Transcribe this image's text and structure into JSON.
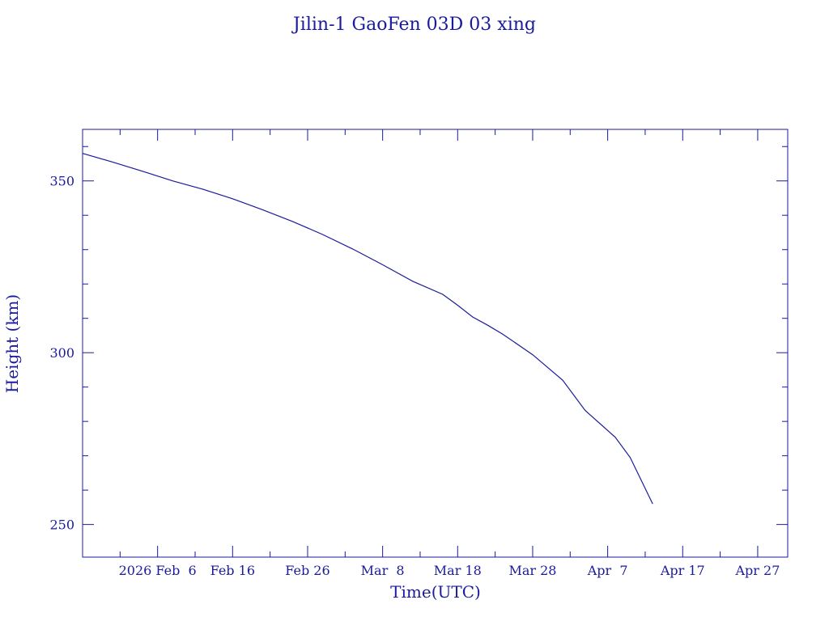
{
  "chart_data": {
    "type": "line",
    "title": "Jilin-1 GaoFen 03D 03 xing",
    "xlabel": "Time(UTC)",
    "ylabel": "Height (km)",
    "x_unit": "days",
    "xlim": [
      "2026-01-27",
      "2026-05-01"
    ],
    "ylim": [
      240.5,
      365
    ],
    "x_ticks": [
      {
        "date": "2026-02-06",
        "label": "2026 Feb  6"
      },
      {
        "date": "2026-02-16",
        "label": "Feb 16"
      },
      {
        "date": "2026-02-26",
        "label": "Feb 26"
      },
      {
        "date": "2026-03-08",
        "label": "Mar  8"
      },
      {
        "date": "2026-03-18",
        "label": "Mar 18"
      },
      {
        "date": "2026-03-28",
        "label": "Mar 28"
      },
      {
        "date": "2026-04-07",
        "label": "Apr  7"
      },
      {
        "date": "2026-04-17",
        "label": "Apr 17"
      },
      {
        "date": "2026-04-27",
        "label": "Apr 27"
      }
    ],
    "y_ticks": [
      250,
      300,
      350
    ],
    "grid": false,
    "color": "#1a1a9c",
    "series": [
      {
        "x": [
          "2026-01-27",
          "2026-01-31",
          "2026-02-04",
          "2026-02-08",
          "2026-02-12",
          "2026-02-16",
          "2026-02-20",
          "2026-02-24",
          "2026-02-28",
          "2026-03-04",
          "2026-03-08",
          "2026-03-12",
          "2026-03-16",
          "2026-03-18",
          "2026-03-20",
          "2026-03-22",
          "2026-03-24",
          "2026-03-28",
          "2026-04-01",
          "2026-04-04",
          "2026-04-08",
          "2026-04-10",
          "2026-04-13"
        ],
        "y": [
          358.0,
          355.5,
          352.8,
          350.0,
          347.6,
          344.8,
          341.6,
          338.2,
          334.4,
          330.2,
          325.6,
          320.8,
          317.0,
          313.8,
          310.4,
          308.0,
          305.4,
          299.4,
          292.0,
          283.2,
          275.4,
          269.5,
          256.0
        ]
      }
    ]
  }
}
